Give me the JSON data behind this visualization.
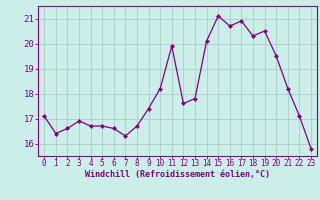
{
  "x": [
    0,
    1,
    2,
    3,
    4,
    5,
    6,
    7,
    8,
    9,
    10,
    11,
    12,
    13,
    14,
    15,
    16,
    17,
    18,
    19,
    20,
    21,
    22,
    23
  ],
  "y": [
    17.1,
    16.4,
    16.6,
    16.9,
    16.7,
    16.7,
    16.6,
    16.3,
    16.7,
    17.4,
    18.2,
    19.9,
    17.6,
    17.8,
    20.1,
    21.1,
    20.7,
    20.9,
    20.3,
    20.5,
    19.5,
    18.2,
    17.1,
    15.8
  ],
  "line_color": "#800080",
  "marker": "D",
  "marker_size": 2,
  "bg_color": "#cceee8",
  "grid_color": "#aacccc",
  "tick_color": "#800080",
  "label_color": "#800080",
  "xlabel": "Windchill (Refroidissement éolien,°C)",
  "ylim": [
    15.5,
    21.5
  ],
  "xlim": [
    -0.5,
    23.5
  ],
  "yticks": [
    16,
    17,
    18,
    19,
    20,
    21
  ],
  "xticks": [
    0,
    1,
    2,
    3,
    4,
    5,
    6,
    7,
    8,
    9,
    10,
    11,
    12,
    13,
    14,
    15,
    16,
    17,
    18,
    19,
    20,
    21,
    22,
    23
  ]
}
